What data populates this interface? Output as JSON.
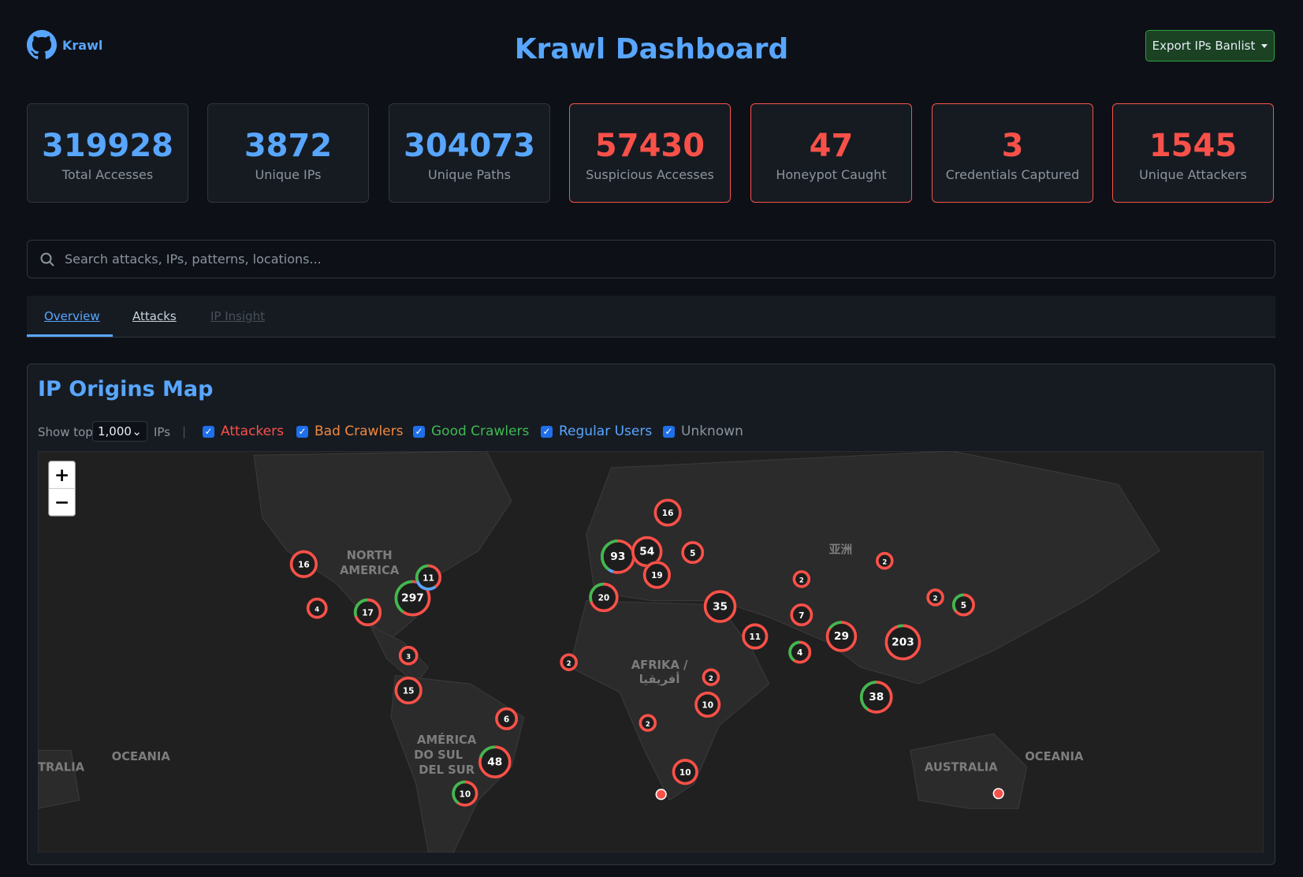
{
  "header": {
    "brand": "Krawl",
    "title": "Krawl Dashboard",
    "export_button": "Export IPs Banlist"
  },
  "stats": [
    {
      "value": 319928,
      "label": "Total Accesses"
    },
    {
      "value": 3872,
      "label": "Unique IPs"
    },
    {
      "value": 304073,
      "label": "Unique Paths"
    },
    {
      "value": 57430,
      "label": "Suspicious Accesses"
    },
    {
      "value": 47,
      "label": "Honeypot Caught"
    },
    {
      "value": 3,
      "label": "Credentials Captured"
    },
    {
      "value": 1545,
      "label": "Unique Attackers"
    }
  ],
  "search": {
    "placeholder": "Search attacks, IPs, patterns, locations..."
  },
  "tabs": [
    "Overview",
    "Attacks",
    "IP Insight"
  ],
  "map": {
    "title": "IP Origins Map",
    "show_top_label": "Show top",
    "show_top_value": "1,000",
    "ips_label": "IPs",
    "separator": "|",
    "filters": [
      "Attackers",
      "Bad Crawlers",
      "Good Crawlers",
      "Regular Users",
      "Unknown"
    ],
    "zoom": [
      "+",
      "−"
    ],
    "labels": [
      "NORTH",
      "AMERICA",
      "AMÉRICA",
      "DO SUL",
      "DEL SUR",
      "AFRIKA /",
      "أفريقيا",
      "亚洲",
      "OCEANIA",
      "TRALIA",
      "AUSTRALIA",
      "OCEANIA"
    ],
    "clusters": [
      16,
      4,
      17,
      297,
      11,
      3,
      15,
      6,
      48,
      10,
      93,
      54,
      19,
      16,
      5,
      20,
      35,
      2,
      11,
      2,
      10,
      2,
      10,
      2,
      7,
      4,
      29,
      2,
      203,
      2,
      5,
      38
    ]
  }
}
